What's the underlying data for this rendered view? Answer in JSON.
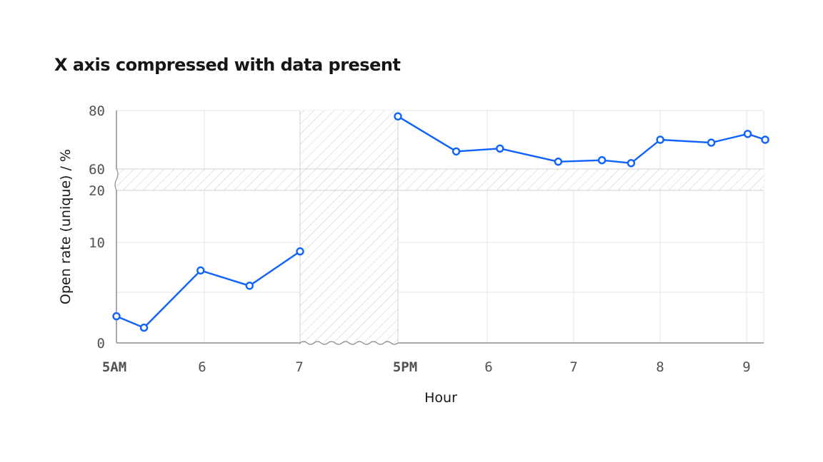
{
  "chart_data": {
    "type": "line",
    "title": "X axis compressed with data present",
    "xlabel": "Hour",
    "ylabel": "Open rate (unique) / %",
    "y_ticks": [
      "0",
      "10",
      "20",
      "60",
      "80"
    ],
    "y_break": [
      20,
      60
    ],
    "x_break": [
      "7AM",
      "5PM"
    ],
    "x_ticks": [
      "5AM",
      "6",
      "7",
      "5PM",
      "6",
      "7",
      "8",
      "9"
    ],
    "series_color": "#0f62fe",
    "segments": [
      {
        "x": [
          "5:00 AM",
          "5:18 AM",
          "5:55 AM",
          "6:27 AM",
          "7:00 AM"
        ],
        "y": [
          3.5,
          2.0,
          9.5,
          7.5,
          12.0
        ]
      },
      {
        "x": [
          "5:00 PM",
          "5:40 PM",
          "6:10 PM",
          "6:50 PM",
          "7:20 PM",
          "7:40 PM",
          "8:00 PM",
          "8:35 PM",
          "9:00 PM",
          "9:12 PM"
        ],
        "y": [
          78,
          66,
          67,
          62.5,
          63,
          62,
          70,
          69,
          72,
          70
        ]
      }
    ]
  }
}
